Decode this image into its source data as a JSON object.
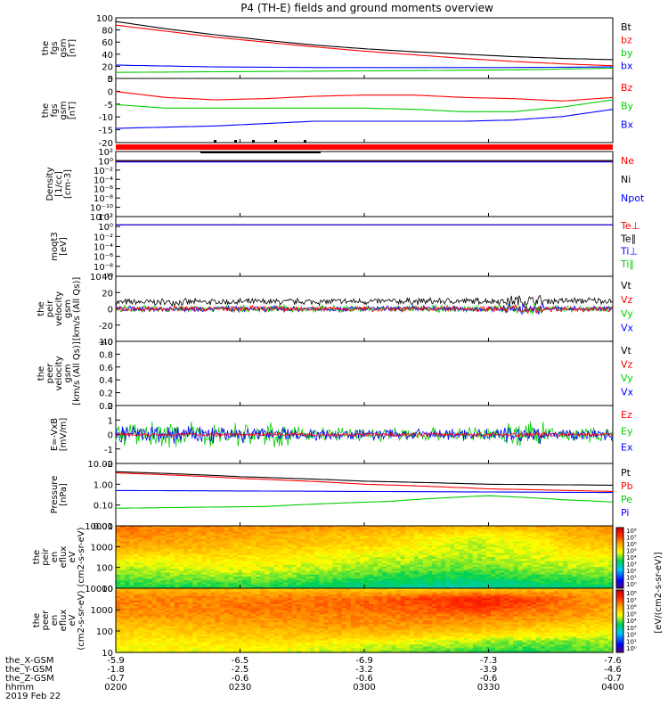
{
  "title": "P4 (TH-E) fields and ground moments overview",
  "footer": {
    "row_labels": [
      "the_X-GSM",
      "the_Y-GSM",
      "the_Z-GSM",
      "hhmm",
      "2019 Feb 22"
    ],
    "columns": [
      [
        "-5.9",
        "-1.8",
        "-0.7",
        "0200"
      ],
      [
        "-6.5",
        "-2.5",
        "-0.6",
        "0230"
      ],
      [
        "-6.9",
        "-3.2",
        "-0.6",
        "0300"
      ],
      [
        "-7.3",
        "-3.9",
        "-0.6",
        "0330"
      ],
      [
        "-7.6",
        "-4.6",
        "-0.7",
        "0400"
      ]
    ]
  },
  "colors": {
    "black": "#000000",
    "red": "#ff0000",
    "green": "#00cc00",
    "blue": "#0000ff"
  },
  "chart_data": [
    {
      "type": "line",
      "ylabel": [
        "the",
        "fgs",
        "gsm",
        "[nT]"
      ],
      "yticks": [
        "100",
        "80",
        "60",
        "40",
        "20",
        "0"
      ],
      "ylim": [
        0,
        100
      ],
      "legend": [
        {
          "name": "Bt",
          "color": "#000000"
        },
        {
          "name": "bz",
          "color": "#ff0000"
        },
        {
          "name": "by",
          "color": "#00cc00"
        },
        {
          "name": "bx",
          "color": "#0000ff"
        }
      ],
      "series": [
        {
          "name": "Bt",
          "color": "#000000",
          "x": [
            0,
            0.1,
            0.2,
            0.3,
            0.4,
            0.5,
            0.6,
            0.7,
            0.8,
            0.9,
            1
          ],
          "y": [
            94,
            82,
            72,
            63,
            55,
            49,
            44,
            40,
            36,
            33,
            31
          ]
        },
        {
          "name": "bz",
          "color": "#ff0000",
          "x": [
            0,
            0.1,
            0.2,
            0.3,
            0.4,
            0.5,
            0.6,
            0.7,
            0.8,
            0.9,
            1
          ],
          "y": [
            88,
            78,
            68,
            60,
            52,
            45,
            39,
            33,
            28,
            24,
            21
          ]
        },
        {
          "name": "by",
          "color": "#00cc00",
          "x": [
            0,
            0.2,
            0.4,
            0.6,
            0.8,
            1
          ],
          "y": [
            10,
            11,
            12,
            13,
            14,
            17
          ]
        },
        {
          "name": "bx",
          "color": "#0000ff",
          "x": [
            0,
            0.2,
            0.4,
            0.6,
            0.8,
            1
          ],
          "y": [
            22,
            19,
            18,
            18,
            18,
            19
          ]
        }
      ]
    },
    {
      "type": "line",
      "ylabel": [
        "the",
        "fgs",
        "gsm",
        "[nT]"
      ],
      "yticks": [
        "5",
        "0",
        "-5",
        "-10",
        "-15",
        "-20"
      ],
      "ylim": [
        -22,
        5
      ],
      "legend": [
        {
          "name": "Bz",
          "color": "#ff0000"
        },
        {
          "name": "By",
          "color": "#00cc00"
        },
        {
          "name": "Bx",
          "color": "#0000ff"
        }
      ],
      "series": [
        {
          "name": "Bz",
          "color": "#ff0000",
          "x": [
            0,
            0.1,
            0.2,
            0.3,
            0.4,
            0.5,
            0.6,
            0.7,
            0.8,
            0.9,
            1
          ],
          "y": [
            -0.5,
            -3,
            -4,
            -3.5,
            -2.5,
            -2,
            -2,
            -3,
            -3.5,
            -4.5,
            -3
          ]
        },
        {
          "name": "By",
          "color": "#00cc00",
          "x": [
            0,
            0.1,
            0.2,
            0.3,
            0.4,
            0.5,
            0.6,
            0.7,
            0.8,
            0.9,
            1
          ],
          "y": [
            -6,
            -7.5,
            -7.5,
            -7.5,
            -7.5,
            -7.5,
            -8,
            -9,
            -9,
            -7,
            -4
          ]
        },
        {
          "name": "Bx",
          "color": "#0000ff",
          "x": [
            0,
            0.1,
            0.2,
            0.3,
            0.4,
            0.5,
            0.6,
            0.7,
            0.8,
            0.9,
            1
          ],
          "y": [
            -16,
            -15.5,
            -15,
            -14,
            -13,
            -13,
            -13,
            -13,
            -12.5,
            -11,
            -8
          ]
        }
      ]
    },
    {
      "type": "line",
      "ylabel": [
        "Density",
        "[1/cc]",
        "[cm-3]"
      ],
      "yticks": [
        "10²",
        "10⁰",
        "10⁻²",
        "10⁻⁴",
        "10⁻⁶",
        "10⁻⁸",
        "10⁻¹⁰",
        "10⁻¹²"
      ],
      "ylim": [
        -13,
        2
      ],
      "log": true,
      "legend": [
        {
          "name": "Ne",
          "color": "#ff0000"
        },
        {
          "name": "Ni",
          "color": "#000000"
        },
        {
          "name": "Npot",
          "color": "#0000ff"
        }
      ],
      "series": [
        {
          "name": "Ne",
          "color": "#ff0000",
          "x": [
            0,
            1
          ],
          "y": [
            0.6,
            0.6
          ]
        },
        {
          "name": "Ni",
          "color": "#000000",
          "x": [
            0,
            1
          ],
          "y": [
            0.8,
            0.8
          ]
        },
        {
          "name": "Npot",
          "color": "#0000ff",
          "x": [
            0,
            1
          ],
          "y": [
            0.4,
            0.4
          ]
        }
      ]
    },
    {
      "type": "line",
      "ylabel": [
        "moqt3",
        "[eV]"
      ],
      "yticks": [
        "10²",
        "10⁰",
        "10⁻²",
        "10⁻⁴",
        "10⁻⁶",
        "10⁻⁸",
        "10⁻¹⁰"
      ],
      "ylim": [
        -10.5,
        2
      ],
      "log": true,
      "legend": [
        {
          "name": "Te⊥",
          "color": "#ff0000"
        },
        {
          "name": "Te∥",
          "color": "#000000"
        },
        {
          "name": "Ti⊥",
          "color": "#0000ff"
        },
        {
          "name": "Ti∥",
          "color": "#00cc00"
        }
      ],
      "series": [
        {
          "name": "Te⊥",
          "color": "#ff0000",
          "x": [
            0,
            1
          ],
          "y": [
            1.9,
            1.9
          ]
        },
        {
          "name": "Ti⊥",
          "color": "#0000ff",
          "x": [
            0,
            1
          ],
          "y": [
            1.85,
            1.85
          ]
        }
      ]
    },
    {
      "type": "line",
      "ylabel": [
        "the",
        "peir",
        "velocity",
        "gsm",
        "[km/s (All Qs)]"
      ],
      "yticks": [
        "40",
        "20",
        "0",
        "-20",
        "-40"
      ],
      "ylim": [
        -40,
        40
      ],
      "noisy": true,
      "legend": [
        {
          "name": "Vt",
          "color": "#000000"
        },
        {
          "name": "Vz",
          "color": "#ff0000"
        },
        {
          "name": "Vy",
          "color": "#00cc00"
        },
        {
          "name": "Vx",
          "color": "#0000ff"
        }
      ],
      "series": [
        {
          "name": "Vt",
          "color": "#000000",
          "x": [
            0,
            1
          ],
          "y": [
            8,
            10
          ],
          "amp": 5
        },
        {
          "name": "Vy",
          "color": "#00cc00",
          "x": [
            0,
            1
          ],
          "y": [
            0,
            0
          ],
          "amp": 5
        },
        {
          "name": "Vx",
          "color": "#0000ff",
          "x": [
            0,
            1
          ],
          "y": [
            0,
            0
          ],
          "amp": 4
        },
        {
          "name": "Vz",
          "color": "#ff0000",
          "x": [
            0,
            1
          ],
          "y": [
            0,
            0
          ],
          "amp": 4
        }
      ]
    },
    {
      "type": "line",
      "ylabel": [
        "the",
        "peer",
        "velocity",
        "gsm",
        "[km/s (All Qs)]"
      ],
      "yticks": [
        "1.0",
        "0.8",
        "0.6",
        "0.4",
        "0.2",
        "0.0"
      ],
      "ylim": [
        0,
        1
      ],
      "legend": [
        {
          "name": "Vt",
          "color": "#000000"
        },
        {
          "name": "Vz",
          "color": "#ff0000"
        },
        {
          "name": "Vy",
          "color": "#00cc00"
        },
        {
          "name": "Vx",
          "color": "#0000ff"
        }
      ],
      "series": []
    },
    {
      "type": "line",
      "ylabel": [
        "E=-VxB",
        "[mV/m]"
      ],
      "yticks": [
        "2",
        "1",
        "0",
        "-1",
        "-2"
      ],
      "ylim": [
        -2,
        2
      ],
      "noisy": true,
      "legend": [
        {
          "name": "Ez",
          "color": "#ff0000"
        },
        {
          "name": "Ey",
          "color": "#00cc00"
        },
        {
          "name": "Ex",
          "color": "#0000ff"
        }
      ],
      "series": [
        {
          "name": "Ey",
          "color": "#00cc00",
          "x": [
            0,
            0.35,
            1
          ],
          "y": [
            0,
            0,
            0
          ],
          "amp": 0.6
        },
        {
          "name": "Ex",
          "color": "#0000ff",
          "x": [
            0,
            0.35,
            1
          ],
          "y": [
            0,
            0,
            0
          ],
          "amp": 0.45
        },
        {
          "name": "Ez",
          "color": "#ff0000",
          "x": [
            0,
            1
          ],
          "y": [
            0,
            0
          ],
          "amp": 0.15
        }
      ]
    },
    {
      "type": "line",
      "ylabel": [
        "Pressure",
        "[nPa]"
      ],
      "yticks": [
        "10.00",
        "1.00",
        "0.10",
        "0.01"
      ],
      "ylim": [
        -2,
        1
      ],
      "log": true,
      "legend": [
        {
          "name": "Pt",
          "color": "#000000"
        },
        {
          "name": "Pb",
          "color": "#ff0000"
        },
        {
          "name": "Pe",
          "color": "#00cc00"
        },
        {
          "name": "Pi",
          "color": "#0000ff"
        }
      ],
      "series": [
        {
          "name": "Pt",
          "color": "#000000",
          "x": [
            0,
            0.25,
            0.5,
            0.75,
            1
          ],
          "y": [
            4.0,
            2.3,
            1.4,
            1.0,
            0.9
          ]
        },
        {
          "name": "Pb",
          "color": "#ff0000",
          "x": [
            0,
            0.25,
            0.5,
            0.75,
            1
          ],
          "y": [
            3.5,
            1.9,
            1.0,
            0.6,
            0.45
          ]
        },
        {
          "name": "Pi",
          "color": "#0000ff",
          "x": [
            0,
            0.5,
            1
          ],
          "y": [
            0.5,
            0.45,
            0.4
          ]
        },
        {
          "name": "Pe",
          "color": "#00cc00",
          "x": [
            0,
            0.3,
            0.55,
            0.75,
            0.9,
            1
          ],
          "y": [
            0.07,
            0.085,
            0.15,
            0.28,
            0.18,
            0.14
          ]
        }
      ]
    },
    {
      "type": "heatmap",
      "ylabel": [
        "the",
        "peir",
        "en",
        "eflux",
        "eV",
        "(cm2-s-sr-eV)"
      ],
      "yticks": [
        "10000",
        "1000",
        "100",
        "10"
      ],
      "ylim": [
        0.8,
        4.3
      ],
      "zlim": [
        3,
        8
      ],
      "grid": [
        [
          7.0,
          6.9,
          6.9,
          6.8,
          6.8,
          6.8,
          6.7,
          6.6,
          6.5,
          6.6,
          6.7,
          6.8
        ],
        [
          6.9,
          6.8,
          6.7,
          6.7,
          6.6,
          6.5,
          6.4,
          6.2,
          6.0,
          6.1,
          6.5,
          6.7
        ],
        [
          6.7,
          6.7,
          6.6,
          6.5,
          6.5,
          6.4,
          6.3,
          6.0,
          5.8,
          6.0,
          6.3,
          6.5
        ],
        [
          6.4,
          6.3,
          6.4,
          6.3,
          6.2,
          6.1,
          6.0,
          5.9,
          5.8,
          5.9,
          6.1,
          6.2
        ],
        [
          6.0,
          6.0,
          6.1,
          6.1,
          6.0,
          5.9,
          5.8,
          5.7,
          5.7,
          5.8,
          5.9,
          6.0
        ],
        [
          5.7,
          5.8,
          5.9,
          5.9,
          5.8,
          5.7,
          5.6,
          5.5,
          5.5,
          5.6,
          5.7,
          5.7
        ],
        [
          5.5,
          5.6,
          5.6,
          5.6,
          5.5,
          5.4,
          5.3,
          5.2,
          5.2,
          5.3,
          5.4,
          5.5
        ],
        [
          5.2,
          5.3,
          5.3,
          5.3,
          5.2,
          5.1,
          5.0,
          4.9,
          4.9,
          5.0,
          5.1,
          5.1
        ]
      ]
    },
    {
      "type": "heatmap",
      "ylabel": [
        "the",
        "peer",
        "en",
        "eflux",
        "eV",
        "(cm2-s-sr-eV)"
      ],
      "yticks": [
        "10000",
        "1000",
        "100",
        "10"
      ],
      "ylim": [
        0.8,
        4.3
      ],
      "zlim": [
        3,
        8
      ],
      "grid": [
        [
          6.6,
          6.6,
          6.6,
          6.5,
          6.5,
          6.5,
          6.4,
          6.4,
          6.4,
          6.5,
          6.5,
          6.6
        ],
        [
          6.9,
          6.9,
          6.9,
          6.9,
          7.0,
          7.0,
          7.1,
          7.3,
          7.5,
          7.3,
          7.0,
          6.8
        ],
        [
          6.9,
          6.9,
          6.9,
          7.0,
          7.0,
          7.0,
          7.1,
          7.2,
          7.4,
          7.2,
          6.9,
          6.7
        ],
        [
          6.8,
          6.8,
          6.9,
          6.9,
          6.9,
          6.9,
          6.9,
          7.0,
          7.0,
          6.9,
          6.8,
          6.6
        ],
        [
          6.5,
          6.5,
          6.6,
          6.7,
          6.7,
          6.8,
          6.8,
          6.8,
          6.7,
          6.6,
          6.4,
          6.3
        ],
        [
          6.3,
          6.3,
          6.4,
          6.5,
          6.5,
          6.5,
          6.5,
          6.4,
          6.3,
          6.2,
          6.1,
          6.0
        ],
        [
          6.1,
          6.1,
          6.2,
          6.2,
          6.2,
          6.1,
          6.0,
          5.9,
          5.7,
          5.6,
          5.6,
          5.7
        ],
        [
          6.0,
          6.0,
          6.0,
          6.0,
          5.9,
          5.8,
          5.6,
          5.5,
          5.4,
          5.3,
          5.4,
          5.5
        ]
      ]
    }
  ],
  "colorbar": {
    "label": "[eV/(cm2-s-sr-eV)]",
    "ticks": [
      "10⁸",
      "10⁷",
      "10⁶",
      "10⁵",
      "10⁴",
      "10³",
      "10²",
      "10¹",
      "10⁰"
    ]
  }
}
